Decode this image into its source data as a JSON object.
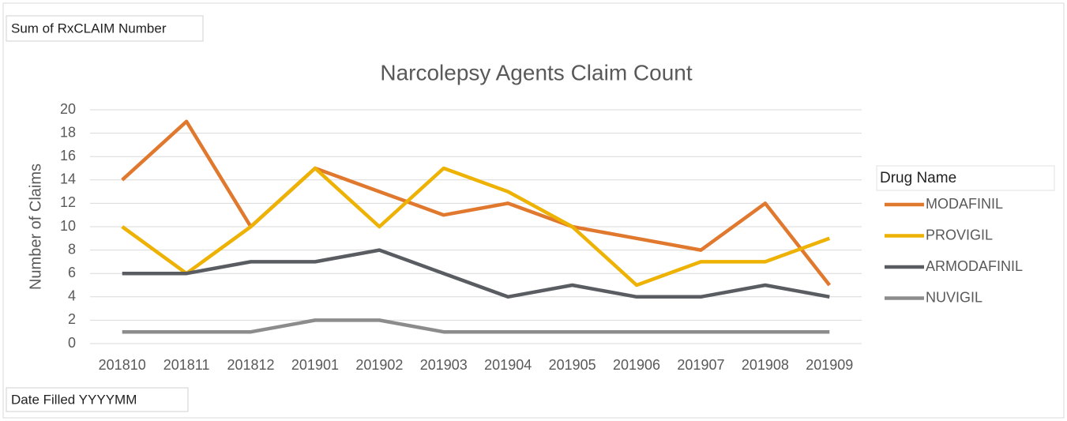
{
  "chart_data": {
    "type": "line",
    "title": "Narcolepsy Agents Claim Count",
    "value_field_button": "Sum of RxCLAIM Number",
    "axis_field_button": "Date Filled YYYYMM",
    "y_label": "Number of Claims",
    "legend_title": "Drug Name",
    "legend": "right",
    "grid": true,
    "categories": [
      "201810",
      "201811",
      "201812",
      "201901",
      "201902",
      "201903",
      "201904",
      "201905",
      "201906",
      "201907",
      "201908",
      "201909"
    ],
    "series": [
      {
        "name": "MODAFINIL",
        "color": "#E0782E",
        "values": [
          14,
          19,
          10,
          15,
          13,
          11,
          12,
          10,
          9,
          8,
          12,
          5
        ]
      },
      {
        "name": "PROVIGIL",
        "color": "#EDB203",
        "values": [
          10,
          6,
          10,
          15,
          10,
          15,
          13,
          10,
          5,
          7,
          7,
          9
        ]
      },
      {
        "name": "ARMODAFINIL",
        "color": "#595C61",
        "values": [
          6,
          6,
          7,
          7,
          8,
          6,
          4,
          5,
          4,
          4,
          5,
          4
        ]
      },
      {
        "name": "NUVIGIL",
        "color": "#8C8C8C",
        "values": [
          1,
          1,
          1,
          2,
          2,
          1,
          1,
          1,
          1,
          1,
          1,
          1
        ]
      }
    ],
    "ylim": [
      0,
      20
    ],
    "yticks": [
      0,
      2,
      4,
      6,
      8,
      10,
      12,
      14,
      16,
      18,
      20
    ]
  }
}
